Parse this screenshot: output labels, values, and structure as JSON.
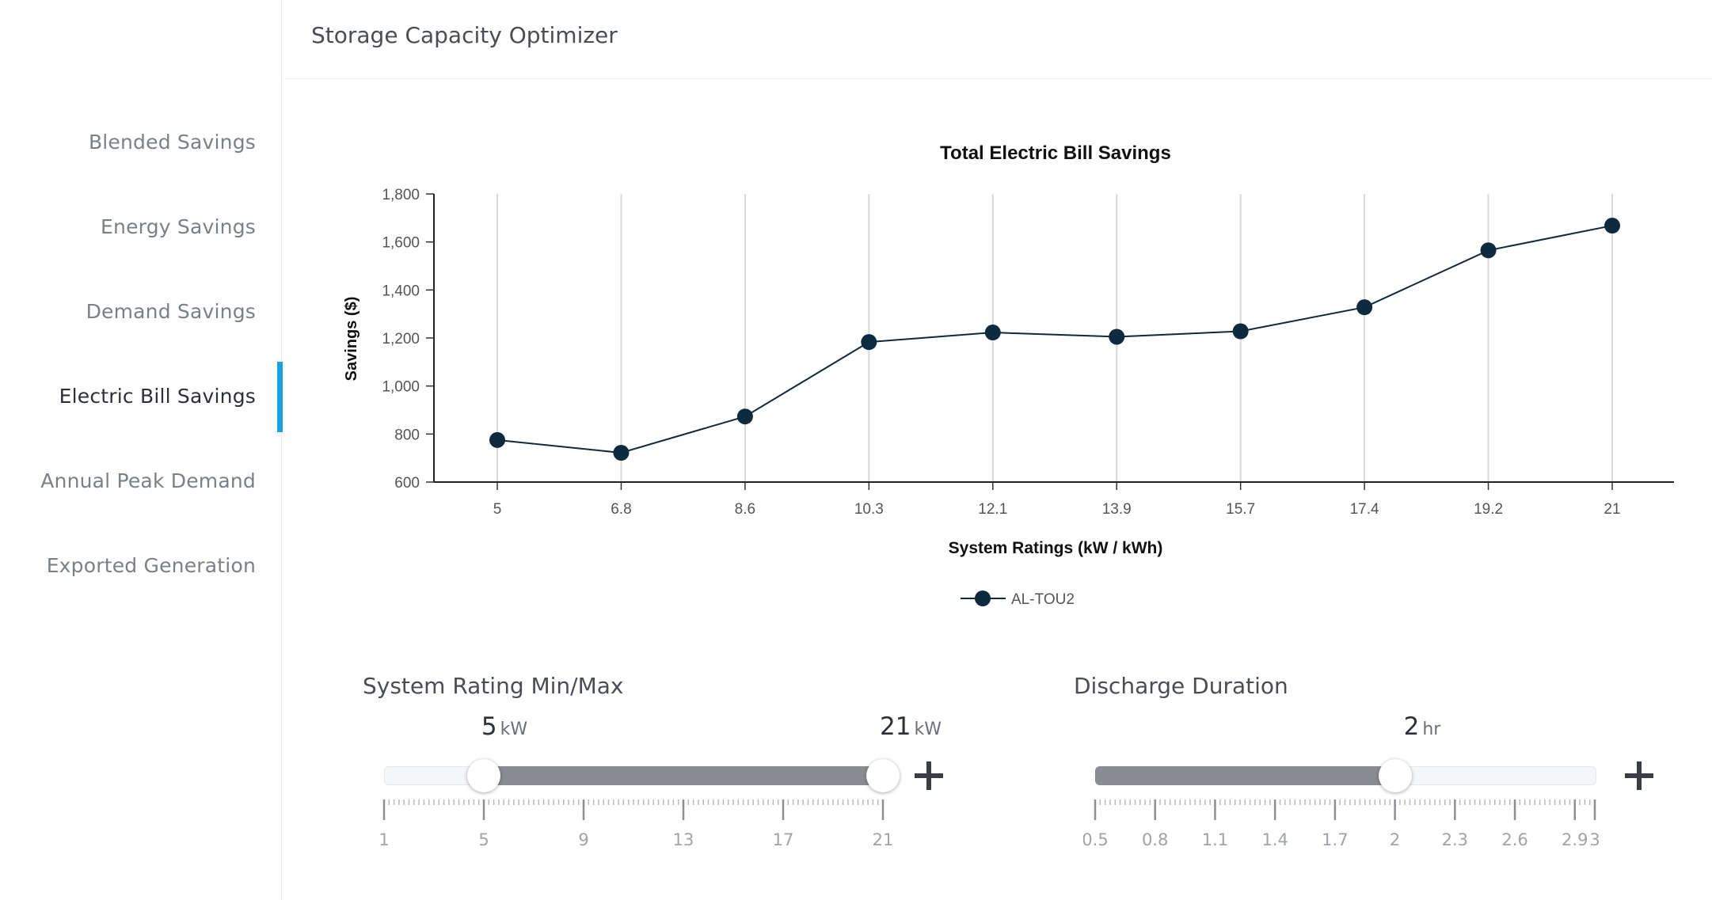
{
  "header": {
    "title": "Storage Capacity Optimizer"
  },
  "sidebar": {
    "items": [
      {
        "label": "Blended Savings",
        "active": false
      },
      {
        "label": "Energy Savings",
        "active": false
      },
      {
        "label": "Demand Savings",
        "active": false
      },
      {
        "label": "Electric Bill Savings",
        "active": true
      },
      {
        "label": "Annual Peak Demand",
        "active": false
      },
      {
        "label": "Exported Generation",
        "active": false
      }
    ],
    "accent_color": "#1aa1e0"
  },
  "chart_data": {
    "type": "line",
    "title": "Total Electric Bill Savings",
    "xlabel": "System Ratings (kW / kWh)",
    "ylabel": "Savings ($)",
    "categories": [
      "5",
      "6.8",
      "8.6",
      "10.3",
      "12.1",
      "13.9",
      "15.7",
      "17.4",
      "19.2",
      "21"
    ],
    "series": [
      {
        "name": "AL-TOU2",
        "values": [
          775,
          722,
          873,
          1183,
          1223,
          1205,
          1228,
          1328,
          1565,
          1668
        ],
        "color": "#0e2a3f"
      }
    ],
    "ylim": [
      600,
      1800
    ],
    "yticks": [
      "600",
      "800",
      "1,000",
      "1,200",
      "1,400",
      "1,600",
      "1,800"
    ],
    "grid": "vertical",
    "legend": "bottom-center"
  },
  "controls": {
    "system_rating": {
      "title": "System Rating Min/Max",
      "min_value": "5",
      "max_value": "21",
      "unit": "kW",
      "range": [
        1,
        21
      ],
      "selected": [
        5,
        21
      ],
      "tick_labels": [
        "1",
        "5",
        "9",
        "13",
        "17",
        "21"
      ]
    },
    "discharge_duration": {
      "title": "Discharge Duration",
      "value": "2",
      "unit": "hr",
      "range": [
        0.5,
        3
      ],
      "selected": 2,
      "tick_labels": [
        "0.5",
        "0.8",
        "1.1",
        "1.4",
        "1.7",
        "2",
        "2.3",
        "2.6",
        "2.9",
        "3"
      ]
    }
  }
}
